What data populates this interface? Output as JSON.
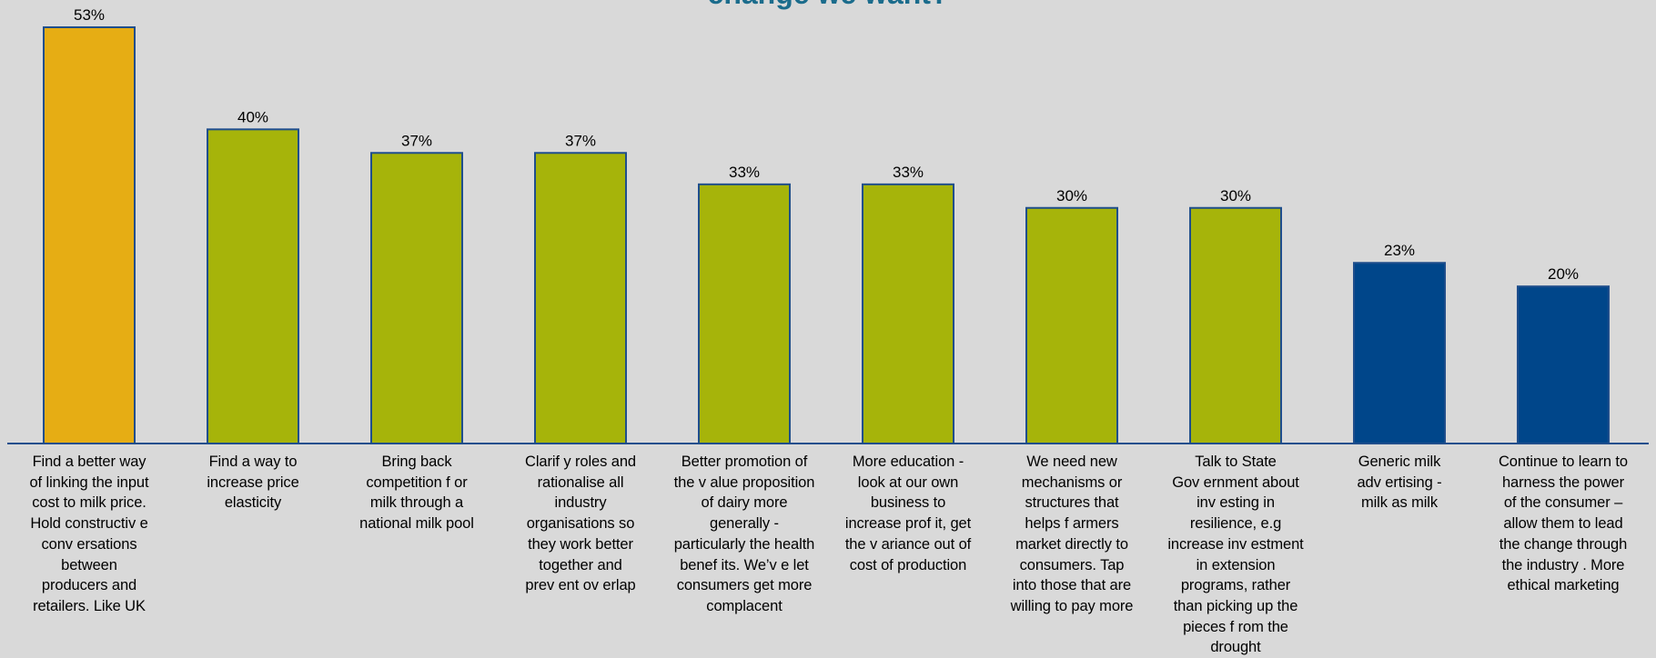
{
  "chart_data": {
    "type": "bar",
    "title": "change we want?",
    "categories": [
      "Find a better way of linking the input cost to milk price. Hold constructiv e conv ersations between producers and retailers. Like UK",
      "Find a way to increase price elasticity",
      "Bring back competition f or milk through a national milk pool",
      "Clarif y roles and rationalise all industry organisations so they work better together and prev ent ov erlap",
      "Better promotion of the v alue proposition of dairy more generally - particularly the health benef its. We’v e let consumers get more complacent",
      "More education - look at our own business to increase prof it, get the v ariance out of cost of production",
      "We need new mechanisms or structures that helps f armers market directly to consumers. Tap into those that are willing to pay more",
      "Talk to State Gov ernment about inv esting in resilience, e.g increase inv estment in extension programs, rather than picking up the pieces f rom the drought",
      "Generic milk adv ertising - milk as milk",
      "Continue to learn to harness the power of the consumer – allow them to lead the change through the industry . More ethical marketing"
    ],
    "category_lines": [
      [
        "Find a better way",
        "of linking the input",
        "cost to milk price.",
        "Hold constructiv e",
        "conv ersations",
        "between",
        "producers and",
        "retailers. Like UK"
      ],
      [
        "Find a way  to",
        "increase price",
        "elasticity"
      ],
      [
        "Bring back",
        "competition f or",
        "milk through a",
        "national milk pool"
      ],
      [
        "Clarif y  roles and",
        "rationalise all",
        "industry",
        "organisations so",
        "they work better",
        "together and",
        "prev ent ov erlap"
      ],
      [
        "Better promotion of",
        "the v alue proposition",
        "of dairy more",
        "generally  -",
        "particularly the health",
        "benef its. We’v e let",
        "consumers get more",
        "complacent"
      ],
      [
        "More education -",
        "look at our own",
        "business to",
        "increase prof it, get",
        "the v ariance out of",
        "cost of production"
      ],
      [
        "We need new",
        "mechanisms or",
        "structures that",
        "helps f armers",
        "market directly to",
        "consumers. Tap",
        "into those that are",
        "willing to pay more"
      ],
      [
        "Talk to State",
        "Gov ernment about",
        "inv esting in",
        "resilience, e.g",
        "increase inv estment",
        "in extension",
        "programs, rather",
        "than picking up the",
        "pieces f rom the",
        "drought"
      ],
      [
        "Generic milk",
        "adv ertising -",
        "milk as milk"
      ],
      [
        "Continue to learn to",
        "harness the power",
        "of the consumer –",
        "allow them to lead",
        "the change through",
        "the industry . More",
        "ethical marketing"
      ]
    ],
    "values": [
      53,
      40,
      37,
      37,
      33,
      33,
      30,
      30,
      23,
      20
    ],
    "value_labels": [
      "53%",
      "40%",
      "37%",
      "37%",
      "33%",
      "33%",
      "30%",
      "30%",
      "23%",
      "20%"
    ],
    "bar_colors": [
      "#e6ad14",
      "#a6b40a",
      "#a6b40a",
      "#a6b40a",
      "#a6b40a",
      "#a6b40a",
      "#a6b40a",
      "#a6b40a",
      "#00468a",
      "#00468a"
    ],
    "bar_edge_color": "#1f4e8c",
    "axis_color": "#1f4e8c",
    "ylim": [
      0,
      53
    ],
    "xlabel": "",
    "ylabel": "",
    "grid": false,
    "legend": "none"
  }
}
